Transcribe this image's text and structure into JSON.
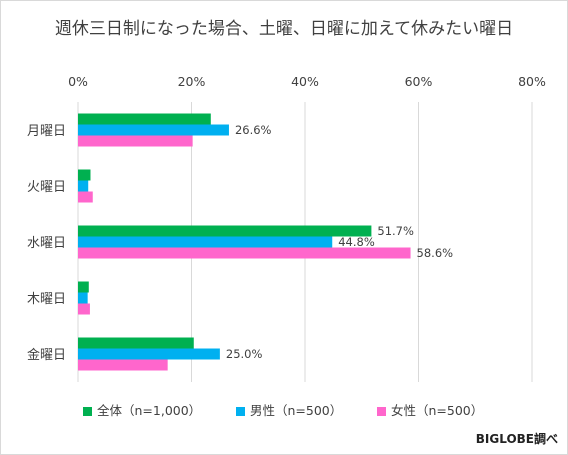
{
  "chart_data": {
    "type": "bar",
    "orientation": "horizontal",
    "title": "週休三日制になった場合、土曜、日曜に加えて休みたい曜日",
    "categories": [
      "月曜日",
      "火曜日",
      "水曜日",
      "木曜日",
      "金曜日"
    ],
    "series": [
      {
        "name": "全体（n=1,000）",
        "color": "#00b050",
        "values": [
          23.4,
          2.2,
          51.7,
          1.9,
          20.4
        ]
      },
      {
        "name": "男性（n=500）",
        "color": "#00b0f0",
        "values": [
          26.6,
          1.8,
          44.8,
          1.7,
          25.0
        ]
      },
      {
        "name": "女性（n=500）",
        "color": "#ff66cc",
        "values": [
          20.2,
          2.6,
          58.6,
          2.1,
          15.8
        ]
      }
    ],
    "data_labels": [
      {
        "series": 1,
        "category": 0,
        "text": "26.6%"
      },
      {
        "series": 0,
        "category": 2,
        "text": "51.7%"
      },
      {
        "series": 1,
        "category": 2,
        "text": "44.8%"
      },
      {
        "series": 2,
        "category": 2,
        "text": "58.6%"
      },
      {
        "series": 1,
        "category": 4,
        "text": "25.0%"
      }
    ],
    "xlim": [
      0,
      80
    ],
    "xticks": [
      "0%",
      "20%",
      "40%",
      "60%",
      "80%"
    ],
    "xtick_values": [
      0,
      20,
      40,
      60,
      80
    ],
    "grid": true,
    "legend_position": "bottom"
  },
  "source": "BIGLOBE調べ"
}
